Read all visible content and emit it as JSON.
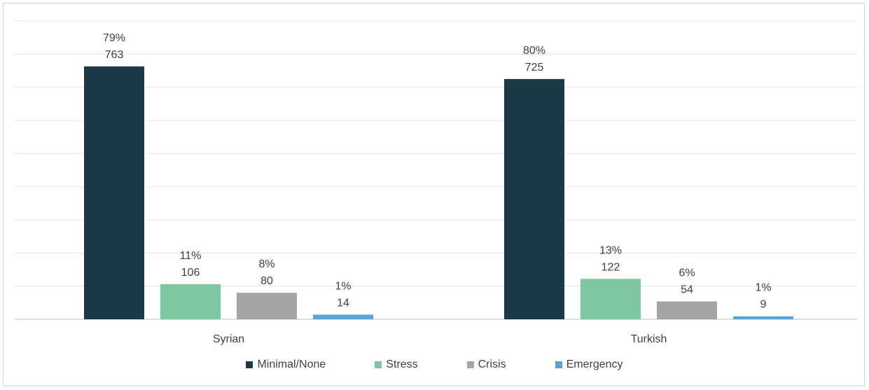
{
  "chart_data": {
    "type": "bar",
    "categories": [
      "Syrian",
      "Turkish"
    ],
    "series": [
      {
        "name": "Minimal/None",
        "color": "#1c3a46",
        "values": [
          763,
          725
        ],
        "percent_labels": [
          "79%",
          "80%"
        ]
      },
      {
        "name": "Stress",
        "color": "#7cc6a2",
        "values": [
          106,
          122
        ],
        "percent_labels": [
          "11%",
          "13%"
        ]
      },
      {
        "name": "Crisis",
        "color": "#a5a5a5",
        "values": [
          80,
          54
        ],
        "percent_labels": [
          "8%",
          "6%"
        ]
      },
      {
        "name": "Emergency",
        "color": "#5ba3d4",
        "values": [
          14,
          9
        ],
        "percent_labels": [
          "1%",
          "1%"
        ]
      }
    ],
    "grid": true,
    "legend": "bottom"
  }
}
